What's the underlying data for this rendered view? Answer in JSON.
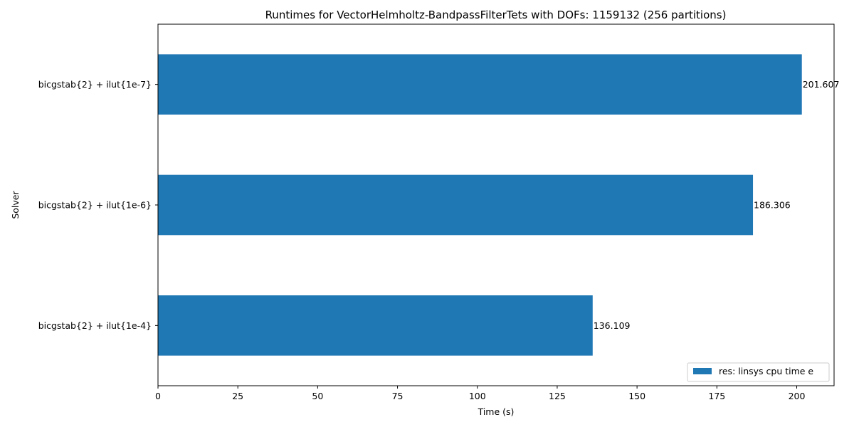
{
  "chart_data": {
    "type": "bar",
    "orientation": "horizontal",
    "title": "Runtimes for VectorHelmholtz-BandpassFilterTets with DOFs: 1159132 (256 partitions)",
    "xlabel": "Time (s)",
    "ylabel": "Solver",
    "categories": [
      "bicgstab{2} + ilut{1e-4}",
      "bicgstab{2} + ilut{1e-6}",
      "bicgstab{2} + ilut{1e-7}"
    ],
    "series": [
      {
        "name": "res: linsys cpu time e",
        "values": [
          136.109,
          186.306,
          201.607
        ],
        "labels": [
          "136.109",
          "186.306",
          "201.607"
        ],
        "color": "#1f77b4"
      }
    ],
    "xlim": [
      0,
      211.7
    ],
    "xticks": [
      0,
      25,
      50,
      75,
      100,
      125,
      150,
      175,
      200
    ],
    "xtick_labels": [
      "0",
      "25",
      "50",
      "75",
      "100",
      "125",
      "150",
      "175",
      "200"
    ],
    "grid": false,
    "legend_position": "lower right"
  }
}
